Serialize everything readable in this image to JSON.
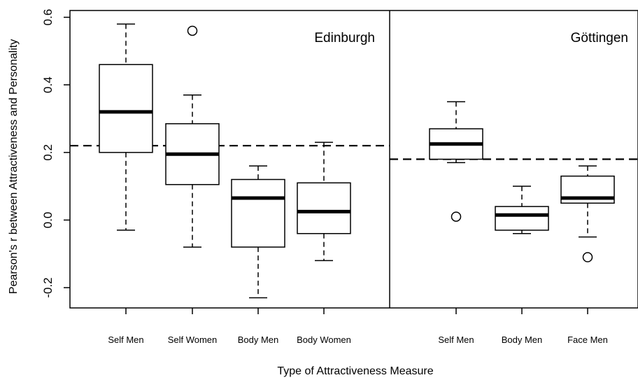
{
  "chart_data": {
    "type": "box",
    "title": "",
    "xlabel": "Type of Attractiveness Measure",
    "ylabel": "Pearson's r between Attractiveness and Personality",
    "ylim": [
      -0.26,
      0.62
    ],
    "yticks": [
      -0.2,
      0.0,
      0.2,
      0.4,
      0.6
    ],
    "ytick_labels": [
      "-0.2",
      "0.0",
      "0.2",
      "0.4",
      "0.6"
    ],
    "grid": false,
    "panels": [
      {
        "name": "Edinburgh",
        "reference_line": 0.22,
        "boxes": [
          {
            "label": "Self Men",
            "whisker_low": -0.03,
            "q1": 0.2,
            "median": 0.32,
            "q3": 0.46,
            "whisker_high": 0.58,
            "outliers": []
          },
          {
            "label": "Self Women",
            "whisker_low": -0.08,
            "q1": 0.105,
            "median": 0.195,
            "q3": 0.285,
            "whisker_high": 0.37,
            "outliers": [
              0.56
            ]
          },
          {
            "label": "Body Men",
            "whisker_low": -0.23,
            "q1": -0.08,
            "median": 0.065,
            "q3": 0.12,
            "whisker_high": 0.16,
            "outliers": []
          },
          {
            "label": "Body Women",
            "whisker_low": -0.12,
            "q1": -0.04,
            "median": 0.025,
            "q3": 0.11,
            "whisker_high": 0.23,
            "outliers": []
          }
        ]
      },
      {
        "name": "Göttingen",
        "reference_line": 0.18,
        "boxes": [
          {
            "label": "Self Men",
            "whisker_low": 0.17,
            "q1": 0.18,
            "median": 0.225,
            "q3": 0.27,
            "whisker_high": 0.35,
            "outliers": [
              0.01
            ]
          },
          {
            "label": "Body Men",
            "whisker_low": -0.04,
            "q1": -0.03,
            "median": 0.015,
            "q3": 0.04,
            "whisker_high": 0.1,
            "outliers": []
          },
          {
            "label": "Face Men",
            "whisker_low": -0.05,
            "q1": 0.05,
            "median": 0.065,
            "q3": 0.13,
            "whisker_high": 0.16,
            "outliers": [
              -0.11
            ]
          }
        ]
      }
    ]
  }
}
